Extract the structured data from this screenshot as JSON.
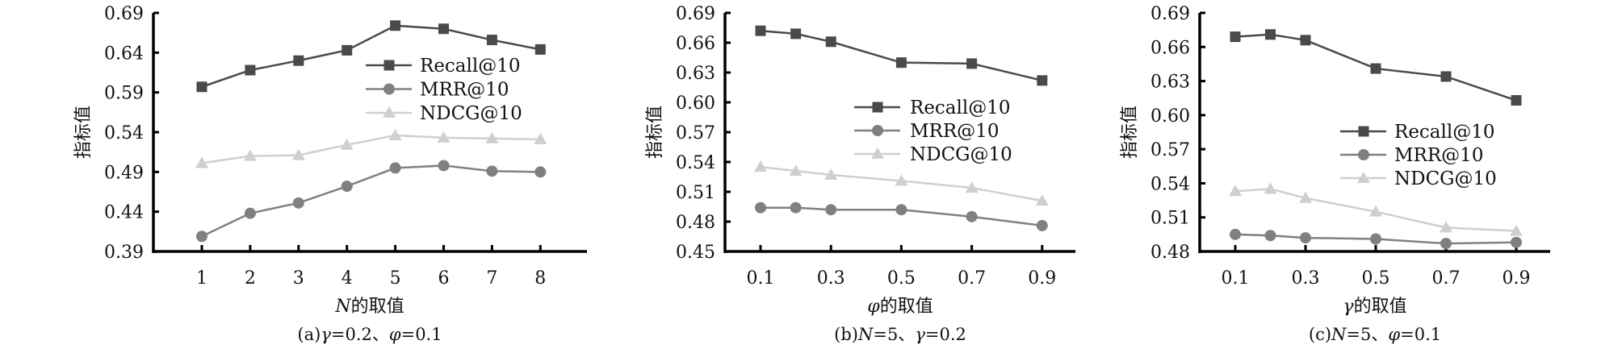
{
  "figure": {
    "series_styles": [
      {
        "name": "Recall@10",
        "marker": "square",
        "color": "#4a4a4a"
      },
      {
        "name": "MRR@10",
        "marker": "circle",
        "color": "#808080"
      },
      {
        "name": "NDCG@10",
        "marker": "triangle",
        "color": "#cfcfcf"
      }
    ]
  },
  "chart_data": [
    {
      "type": "line",
      "caption": "(a)γ=0.2、φ=0.1",
      "xlabel": "N的取值",
      "ylabel": "指标值",
      "x": [
        1,
        2,
        3,
        4,
        5,
        6,
        7,
        8
      ],
      "xticks": [
        "1",
        "2",
        "3",
        "4",
        "5",
        "6",
        "7",
        "8"
      ],
      "yticks": [
        "0.69",
        "0.64",
        "0.59",
        "0.54",
        "0.49",
        "0.44",
        "0.39"
      ],
      "ylim": [
        0.39,
        0.69
      ],
      "legend": [
        "Recall@10",
        "MRR@10",
        "NDCG@10"
      ],
      "legend_position": "upper-right",
      "grid": false,
      "series": [
        {
          "name": "Recall@10",
          "values": [
            0.597,
            0.618,
            0.63,
            0.643,
            0.674,
            0.67,
            0.656,
            0.644
          ]
        },
        {
          "name": "MRR@10",
          "values": [
            0.409,
            0.438,
            0.451,
            0.472,
            0.495,
            0.498,
            0.491,
            0.49
          ]
        },
        {
          "name": "NDCG@10",
          "values": [
            0.501,
            0.51,
            0.511,
            0.524,
            0.536,
            0.533,
            0.532,
            0.531
          ]
        }
      ]
    },
    {
      "type": "line",
      "caption": "(b)N=5、γ=0.2",
      "xlabel": "φ的取值",
      "ylabel": "指标值",
      "x": [
        0.1,
        0.2,
        0.3,
        0.5,
        0.7,
        0.9
      ],
      "xticks": [
        "0.1",
        "0.3",
        "0.5",
        "0.7",
        "0.9"
      ],
      "yticks": [
        "0.69",
        "0.66",
        "0.63",
        "0.60",
        "0.57",
        "0.54",
        "0.51",
        "0.48",
        "0.45"
      ],
      "ylim": [
        0.45,
        0.69
      ],
      "legend": [
        "Recall@10",
        "MRR@10",
        "NDCG@10"
      ],
      "legend_position": "center-right",
      "grid": false,
      "series": [
        {
          "name": "Recall@10",
          "values": [
            0.672,
            0.669,
            0.661,
            0.64,
            0.639,
            0.622
          ]
        },
        {
          "name": "MRR@10",
          "values": [
            0.494,
            0.494,
            0.492,
            0.492,
            0.485,
            0.476
          ]
        },
        {
          "name": "NDCG@10",
          "values": [
            0.535,
            0.531,
            0.527,
            0.521,
            0.514,
            0.501
          ]
        }
      ]
    },
    {
      "type": "line",
      "caption": "(c)N=5、φ=0.1",
      "xlabel": "γ的取值",
      "ylabel": "指标值",
      "x": [
        0.1,
        0.2,
        0.3,
        0.5,
        0.7,
        0.9
      ],
      "xticks": [
        "0.1",
        "0.3",
        "0.5",
        "0.7",
        "0.9"
      ],
      "yticks": [
        "0.69",
        "0.66",
        "0.63",
        "0.60",
        "0.57",
        "0.54",
        "0.51",
        "0.48"
      ],
      "ylim": [
        0.48,
        0.69
      ],
      "legend": [
        "Recall@10",
        "MRR@10",
        "NDCG@10"
      ],
      "legend_position": "center-right",
      "grid": false,
      "series": [
        {
          "name": "Recall@10",
          "values": [
            0.669,
            0.671,
            0.666,
            0.641,
            0.634,
            0.613
          ]
        },
        {
          "name": "MRR@10",
          "values": [
            0.495,
            0.494,
            0.492,
            0.491,
            0.487,
            0.488
          ]
        },
        {
          "name": "NDCG@10",
          "values": [
            0.533,
            0.535,
            0.527,
            0.515,
            0.501,
            0.498
          ]
        }
      ]
    }
  ]
}
